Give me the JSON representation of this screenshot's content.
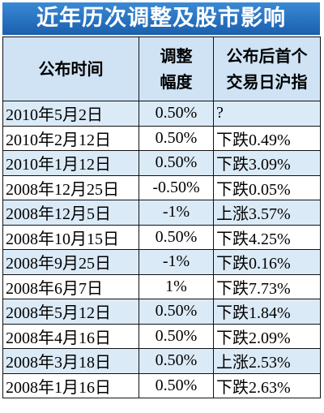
{
  "header": {
    "title": "近年历次调整及股市影响"
  },
  "table": {
    "columns": [
      [
        "公布时间"
      ],
      [
        "调整",
        "幅度"
      ],
      [
        "公布后首个",
        "交易日沪指"
      ]
    ],
    "rows": [
      [
        "2010年5月2日",
        "0.50%",
        "?"
      ],
      [
        "2010年2月12日",
        "0.50%",
        "下跌0.49%"
      ],
      [
        "2010年1月12日",
        "0.50%",
        "下跌3.09%"
      ],
      [
        "2008年12月25日",
        "-0.50%",
        "下跌0.05%"
      ],
      [
        "2008年12月5日",
        "-1%",
        "上涨3.57%"
      ],
      [
        "2008年10月15日",
        "0.50%",
        "下跌4.25%"
      ],
      [
        "2008年9月25日",
        "-1%",
        "下跌0.16%"
      ],
      [
        "2008年6月7日",
        "1%",
        "下跌7.73%"
      ],
      [
        "2008年5月12日",
        "0.50%",
        "下跌1.84%"
      ],
      [
        "2008年4月16日",
        "0.50%",
        "下跌2.09%"
      ],
      [
        "2008年3月18日",
        "0.50%",
        "上涨2.53%"
      ],
      [
        "2008年1月16日",
        "0.50%",
        "下跌2.63%"
      ]
    ]
  }
}
